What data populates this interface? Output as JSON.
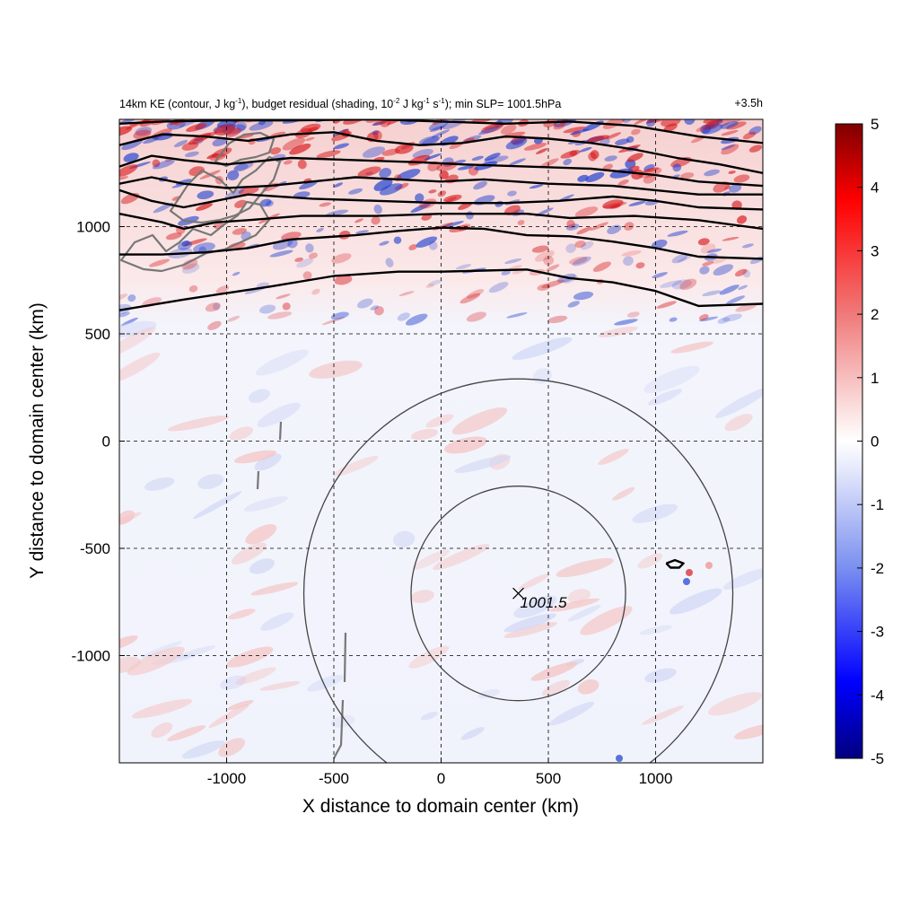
{
  "header": {
    "title_parts": [
      "14km KE (contour, J kg",
      "-1",
      "), budget residual (shading, 10",
      "-2",
      " J kg",
      "-1",
      " s",
      "-1",
      "); min SLP= 1001.5hPa"
    ],
    "time_label": "+3.5h"
  },
  "colors": {
    "positive": "#d7191c",
    "negative": "#1a3ccf",
    "contour": "#000000",
    "coastline": "#777777",
    "radius_rings": "#444444"
  },
  "chart_data": {
    "type": "heatmap",
    "xlabel": "X distance to domain center (km)",
    "ylabel": "Y distance to domain center (km)",
    "xlim": [
      -1500,
      1500
    ],
    "ylim": [
      -1500,
      1500
    ],
    "x_ticks": [
      -1000,
      -500,
      0,
      500,
      1000
    ],
    "y_ticks": [
      1000,
      500,
      0,
      -500,
      -1000
    ],
    "x_tick_labels": [
      "-1000",
      "-500",
      "0",
      "500",
      "1000"
    ],
    "y_tick_labels": [
      "1000",
      "500",
      "0",
      "-500",
      "-1000"
    ],
    "grid": true,
    "colorbar": {
      "range": [
        -5,
        5
      ],
      "ticks": [
        5,
        4,
        3,
        2,
        1,
        0,
        -1,
        -2,
        -3,
        -4,
        -5
      ],
      "tick_labels": [
        "5",
        "4",
        "3",
        "2",
        "1",
        "0",
        "-1",
        "-2",
        "-3",
        "-4",
        "-5"
      ]
    },
    "storm_center": {
      "x": 360,
      "y": -710,
      "label": "1001.5"
    },
    "radius_rings_km": [
      500,
      1000
    ],
    "ke_contours": [
      [
        [
          -1500,
          610
        ],
        [
          -1200,
          660
        ],
        [
          -800,
          720
        ],
        [
          -500,
          770
        ],
        [
          -200,
          790
        ],
        [
          0,
          790
        ],
        [
          200,
          795
        ],
        [
          400,
          800
        ],
        [
          600,
          760
        ],
        [
          800,
          740
        ],
        [
          1000,
          700
        ],
        [
          1200,
          630
        ],
        [
          1500,
          640
        ]
      ],
      [
        [
          -1500,
          870
        ],
        [
          -1300,
          870
        ],
        [
          -1100,
          880
        ],
        [
          -900,
          900
        ],
        [
          -700,
          940
        ],
        [
          -400,
          960
        ],
        [
          -200,
          980
        ],
        [
          0,
          995
        ],
        [
          200,
          990
        ],
        [
          400,
          960
        ],
        [
          600,
          955
        ],
        [
          800,
          930
        ],
        [
          1000,
          900
        ],
        [
          1200,
          860
        ],
        [
          1500,
          850
        ]
      ],
      [
        [
          -1500,
          1060
        ],
        [
          -1300,
          1020
        ],
        [
          -1200,
          990
        ],
        [
          -1050,
          1020
        ],
        [
          -900,
          1030
        ],
        [
          -650,
          1050
        ],
        [
          -300,
          1050
        ],
        [
          0,
          1060
        ],
        [
          200,
          1060
        ],
        [
          400,
          1060
        ],
        [
          600,
          1040
        ],
        [
          900,
          1050
        ],
        [
          1200,
          1030
        ],
        [
          1500,
          990
        ]
      ],
      [
        [
          -1500,
          1170
        ],
        [
          -1350,
          1120
        ],
        [
          -1200,
          1090
        ],
        [
          -1050,
          1120
        ],
        [
          -900,
          1150
        ],
        [
          -600,
          1130
        ],
        [
          -300,
          1120
        ],
        [
          0,
          1110
        ],
        [
          300,
          1110
        ],
        [
          550,
          1120
        ],
        [
          800,
          1140
        ],
        [
          1000,
          1120
        ],
        [
          1200,
          1090
        ],
        [
          1500,
          1080
        ]
      ],
      [
        [
          -1500,
          1200
        ],
        [
          -1350,
          1230
        ],
        [
          -1200,
          1200
        ],
        [
          -1000,
          1180
        ],
        [
          -800,
          1190
        ],
        [
          -600,
          1210
        ],
        [
          -400,
          1230
        ],
        [
          0,
          1210
        ],
        [
          200,
          1220
        ],
        [
          500,
          1200
        ],
        [
          800,
          1190
        ],
        [
          1000,
          1170
        ],
        [
          1200,
          1150
        ],
        [
          1500,
          1150
        ]
      ],
      [
        [
          -1500,
          1280
        ],
        [
          -1350,
          1330
        ],
        [
          -1200,
          1310
        ],
        [
          -1000,
          1290
        ],
        [
          -700,
          1320
        ],
        [
          -400,
          1310
        ],
        [
          -100,
          1300
        ],
        [
          100,
          1290
        ],
        [
          400,
          1280
        ],
        [
          700,
          1270
        ],
        [
          1000,
          1240
        ],
        [
          1200,
          1210
        ],
        [
          1500,
          1190
        ]
      ],
      [
        [
          -1500,
          1380
        ],
        [
          -1300,
          1430
        ],
        [
          -1100,
          1420
        ],
        [
          -900,
          1400
        ],
        [
          -700,
          1430
        ],
        [
          -500,
          1440
        ],
        [
          -300,
          1400
        ],
        [
          -100,
          1380
        ],
        [
          100,
          1390
        ],
        [
          300,
          1420
        ],
        [
          500,
          1410
        ],
        [
          700,
          1390
        ],
        [
          900,
          1360
        ],
        [
          1100,
          1320
        ],
        [
          1300,
          1290
        ],
        [
          1500,
          1250
        ]
      ],
      [
        [
          -1500,
          1480
        ],
        [
          -1300,
          1490
        ],
        [
          -1000,
          1495
        ],
        [
          -700,
          1495
        ],
        [
          -300,
          1500
        ],
        [
          0,
          1490
        ],
        [
          300,
          1480
        ],
        [
          600,
          1490
        ],
        [
          900,
          1470
        ],
        [
          1200,
          1420
        ],
        [
          1500,
          1390
        ]
      ],
      [
        [
          1050,
          -570
        ],
        [
          1090,
          -555
        ],
        [
          1130,
          -570
        ],
        [
          1110,
          -590
        ],
        [
          1070,
          -590
        ],
        [
          1050,
          -570
        ]
      ]
    ]
  }
}
